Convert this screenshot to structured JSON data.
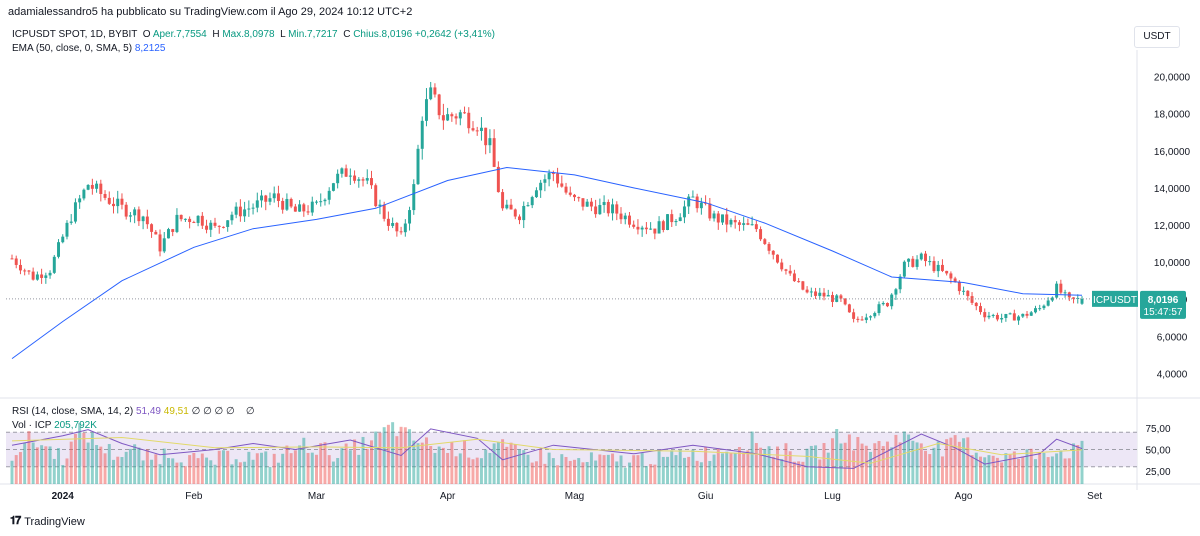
{
  "header": {
    "published_by": "adamialessandro5 ha pubblicato su TradingView.com il Ago 29, 2024 10:12 UTC+2"
  },
  "legend": {
    "symbol": "ICPUSDT SPOT, 1D, BYBIT",
    "o_label": "O",
    "o_value": "Aper.7,7554",
    "h_label": "H",
    "h_value": "Max.8,0978",
    "l_label": "L",
    "l_value": "Min.7,7217",
    "c_label": "C",
    "c_value": "Chius.8,0196",
    "change": "+0,2642 (+3,41%)",
    "ema_label": "EMA (50, close, 0, SMA, 5)",
    "ema_value": "8,2125",
    "rsi_label": "RSI (14, close, SMA, 14, 2)",
    "rsi_value": "51,49",
    "rsi_ma_value": "49,51",
    "rsi_extra": "∅ ∅ ∅ ∅",
    "rsi_extra2": "∅",
    "vol_label": "Vol · ICP",
    "vol_value": "205,792K"
  },
  "currency_button": "USDT",
  "price_tag": {
    "symbol": "ICPUSDT",
    "price": "8,0196",
    "countdown": "15:47:57"
  },
  "footer": {
    "logo_text": "TradingView"
  },
  "colors": {
    "up": "#26a69a",
    "down": "#ef5350",
    "ema": "#2962ff",
    "rsi": "#7e57c2",
    "rsi_ma": "#e2d96a",
    "rsi_band": "#ede7f6"
  },
  "chart_data": {
    "type": "candlestick",
    "y_axis": {
      "ticks": [
        4,
        6,
        8,
        10,
        12,
        14,
        16,
        18,
        20
      ],
      "tick_labels": [
        "4,0000",
        "6,0000",
        "8,0000",
        "10,0000",
        "12,0000",
        "14,0000",
        "16,0000",
        "18,0000",
        "20,0000"
      ],
      "range": [
        3,
        21
      ]
    },
    "x_axis": {
      "tick_labels": [
        "2024",
        "Feb",
        "Mar",
        "Apr",
        "Mag",
        "Giu",
        "Lug",
        "Ago",
        "Set"
      ],
      "tick_dates": [
        "2024-01-01",
        "2024-02-01",
        "2024-03-01",
        "2024-04-01",
        "2024-05-01",
        "2024-06-01",
        "2024-07-01",
        "2024-08-01",
        "2024-09-01"
      ]
    },
    "date_range": [
      "2023-12-20",
      "2024-08-29"
    ],
    "close_series": [
      [
        "2023-12-20",
        10.2
      ],
      [
        "2023-12-25",
        9.2
      ],
      [
        "2023-12-29",
        9.6
      ],
      [
        "2024-01-03",
        12.5
      ],
      [
        "2024-01-07",
        14.2
      ],
      [
        "2024-01-11",
        13.5
      ],
      [
        "2024-01-15",
        12.9
      ],
      [
        "2024-01-20",
        12.5
      ],
      [
        "2024-01-24",
        10.8
      ],
      [
        "2024-01-28",
        12.3
      ],
      [
        "2024-02-02",
        12.4
      ],
      [
        "2024-02-06",
        11.8
      ],
      [
        "2024-02-10",
        12.6
      ],
      [
        "2024-02-15",
        13.0
      ],
      [
        "2024-02-20",
        13.5
      ],
      [
        "2024-02-25",
        12.7
      ],
      [
        "2024-03-01",
        13.0
      ],
      [
        "2024-03-05",
        14.4
      ],
      [
        "2024-03-09",
        15.0
      ],
      [
        "2024-03-13",
        14.2
      ],
      [
        "2024-03-17",
        12.5
      ],
      [
        "2024-03-21",
        11.3
      ],
      [
        "2024-03-24",
        14.0
      ],
      [
        "2024-03-26",
        18.0
      ],
      [
        "2024-03-28",
        19.0
      ],
      [
        "2024-03-31",
        17.8
      ],
      [
        "2024-04-04",
        18.0
      ],
      [
        "2024-04-08",
        17.5
      ],
      [
        "2024-04-11",
        16.2
      ],
      [
        "2024-04-14",
        12.8
      ],
      [
        "2024-04-18",
        12.6
      ],
      [
        "2024-04-22",
        14.2
      ],
      [
        "2024-04-26",
        14.8
      ],
      [
        "2024-04-30",
        13.4
      ],
      [
        "2024-05-05",
        13.0
      ],
      [
        "2024-05-10",
        12.8
      ],
      [
        "2024-05-15",
        12.2
      ],
      [
        "2024-05-20",
        11.8
      ],
      [
        "2024-05-25",
        12.5
      ],
      [
        "2024-05-29",
        13.4
      ],
      [
        "2024-06-03",
        12.4
      ],
      [
        "2024-06-08",
        12.0
      ],
      [
        "2024-06-13",
        11.8
      ],
      [
        "2024-06-17",
        10.5
      ],
      [
        "2024-06-21",
        9.2
      ],
      [
        "2024-06-25",
        8.3
      ],
      [
        "2024-06-29",
        8.2
      ],
      [
        "2024-07-03",
        7.9
      ],
      [
        "2024-07-06",
        6.8
      ],
      [
        "2024-07-10",
        7.3
      ],
      [
        "2024-07-14",
        7.8
      ],
      [
        "2024-07-18",
        9.8
      ],
      [
        "2024-07-22",
        10.2
      ],
      [
        "2024-07-26",
        9.6
      ],
      [
        "2024-07-30",
        8.9
      ],
      [
        "2024-08-03",
        7.8
      ],
      [
        "2024-08-06",
        7.2
      ],
      [
        "2024-08-10",
        7.0
      ],
      [
        "2024-08-15",
        7.1
      ],
      [
        "2024-08-19",
        7.5
      ],
      [
        "2024-08-23",
        8.6
      ],
      [
        "2024-08-26",
        7.9
      ],
      [
        "2024-08-29",
        8.02
      ]
    ],
    "ema_series": [
      [
        "2023-12-20",
        4.8
      ],
      [
        "2024-01-01",
        6.8
      ],
      [
        "2024-01-15",
        9.0
      ],
      [
        "2024-02-01",
        10.8
      ],
      [
        "2024-02-15",
        11.8
      ],
      [
        "2024-03-01",
        12.3
      ],
      [
        "2024-03-15",
        12.9
      ],
      [
        "2024-04-01",
        14.4
      ],
      [
        "2024-04-15",
        15.1
      ],
      [
        "2024-05-01",
        14.7
      ],
      [
        "2024-05-15",
        14.0
      ],
      [
        "2024-06-01",
        13.2
      ],
      [
        "2024-06-15",
        12.1
      ],
      [
        "2024-07-01",
        10.6
      ],
      [
        "2024-07-15",
        9.2
      ],
      [
        "2024-08-01",
        8.9
      ],
      [
        "2024-08-15",
        8.3
      ],
      [
        "2024-08-29",
        8.21
      ]
    ],
    "rsi_axis": {
      "ticks": [
        25,
        50,
        75
      ],
      "tick_labels": [
        "25,00",
        "50,00",
        "75,00"
      ],
      "band": [
        30,
        70
      ]
    },
    "rsi_series": [
      [
        "2023-12-20",
        55
      ],
      [
        "2024-01-01",
        66
      ],
      [
        "2024-01-07",
        73
      ],
      [
        "2024-01-15",
        57
      ],
      [
        "2024-01-24",
        44
      ],
      [
        "2024-02-06",
        50
      ],
      [
        "2024-02-15",
        57
      ],
      [
        "2024-02-25",
        50
      ],
      [
        "2024-03-09",
        61
      ],
      [
        "2024-03-21",
        43
      ],
      [
        "2024-03-28",
        74
      ],
      [
        "2024-04-08",
        63
      ],
      [
        "2024-04-14",
        38
      ],
      [
        "2024-04-26",
        55
      ],
      [
        "2024-05-15",
        45
      ],
      [
        "2024-05-29",
        55
      ],
      [
        "2024-06-13",
        45
      ],
      [
        "2024-06-25",
        30
      ],
      [
        "2024-07-06",
        28
      ],
      [
        "2024-07-22",
        68
      ],
      [
        "2024-07-30",
        52
      ],
      [
        "2024-08-06",
        33
      ],
      [
        "2024-08-19",
        45
      ],
      [
        "2024-08-23",
        62
      ],
      [
        "2024-08-29",
        51
      ]
    ],
    "rsi_ma_series": [
      [
        "2023-12-20",
        60
      ],
      [
        "2024-01-15",
        64
      ],
      [
        "2024-02-06",
        52
      ],
      [
        "2024-03-01",
        53
      ],
      [
        "2024-03-21",
        52
      ],
      [
        "2024-04-08",
        62
      ],
      [
        "2024-04-26",
        50
      ],
      [
        "2024-05-29",
        48
      ],
      [
        "2024-06-25",
        42
      ],
      [
        "2024-07-10",
        34
      ],
      [
        "2024-07-26",
        57
      ],
      [
        "2024-08-10",
        44
      ],
      [
        "2024-08-29",
        49.5
      ]
    ],
    "volume": {
      "label": "Vol · ICP",
      "last": "205,792K",
      "relative_levels": [
        0.42,
        0.7,
        0.55,
        0.35,
        0.9,
        0.6,
        0.4,
        0.5,
        0.3,
        0.45,
        0.35,
        0.25,
        0.3,
        0.4,
        0.35,
        0.3,
        0.45,
        0.6,
        0.5,
        0.4,
        0.55,
        0.7,
        0.95,
        0.75,
        0.6,
        0.5,
        0.55,
        0.4,
        0.6,
        0.45,
        0.4,
        0.35,
        0.3,
        0.25,
        0.3,
        0.28,
        0.3,
        0.35,
        0.3,
        0.45,
        0.4,
        0.5,
        0.55,
        0.7,
        0.5,
        0.45,
        0.35,
        0.5,
        0.8,
        0.6,
        0.55,
        0.7,
        0.75,
        0.6,
        0.5,
        0.7,
        0.45,
        0.4,
        0.35,
        0.4,
        0.5,
        0.45,
        0.5
      ]
    }
  }
}
